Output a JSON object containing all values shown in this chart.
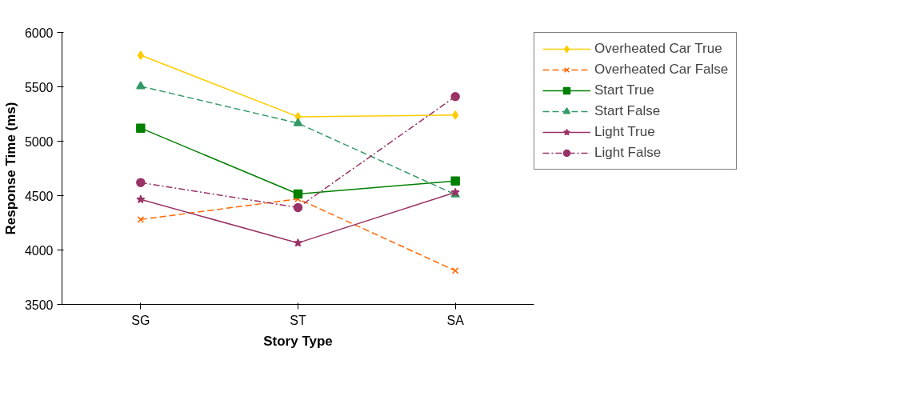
{
  "chart_data": {
    "type": "line",
    "xlabel": "Story Type",
    "ylabel": "Response Time (ms)",
    "categories": [
      "SG",
      "ST",
      "SA"
    ],
    "ylim": [
      3500,
      6000
    ],
    "yticks": [
      3500,
      4000,
      4500,
      5000,
      5500,
      6000
    ],
    "grid": false,
    "legend": "right",
    "series": [
      {
        "name": "Overheated Car True",
        "color": "#ffcc00",
        "marker": "diamond",
        "line_style": "solid",
        "values": [
          5790,
          5225,
          5240
        ]
      },
      {
        "name": "Overheated Car False",
        "color": "#ff6600",
        "marker": "cross",
        "line_style": "dashed",
        "values": [
          4280,
          4470,
          3810
        ]
      },
      {
        "name": "Start True",
        "color": "#008000",
        "marker": "square",
        "line_style": "solid",
        "values": [
          5120,
          4515,
          4635
        ]
      },
      {
        "name": "Start False",
        "color": "#339966",
        "marker": "triangle",
        "line_style": "dashed",
        "values": [
          5505,
          5165,
          4510
        ]
      },
      {
        "name": "Light True",
        "color": "#993366",
        "marker": "star",
        "line_style": "solid",
        "values": [
          4465,
          4065,
          4530
        ]
      },
      {
        "name": "Light False",
        "color": "#993366",
        "marker": "circle",
        "line_style": "dashdot",
        "values": [
          4620,
          4390,
          5410
        ]
      }
    ]
  }
}
